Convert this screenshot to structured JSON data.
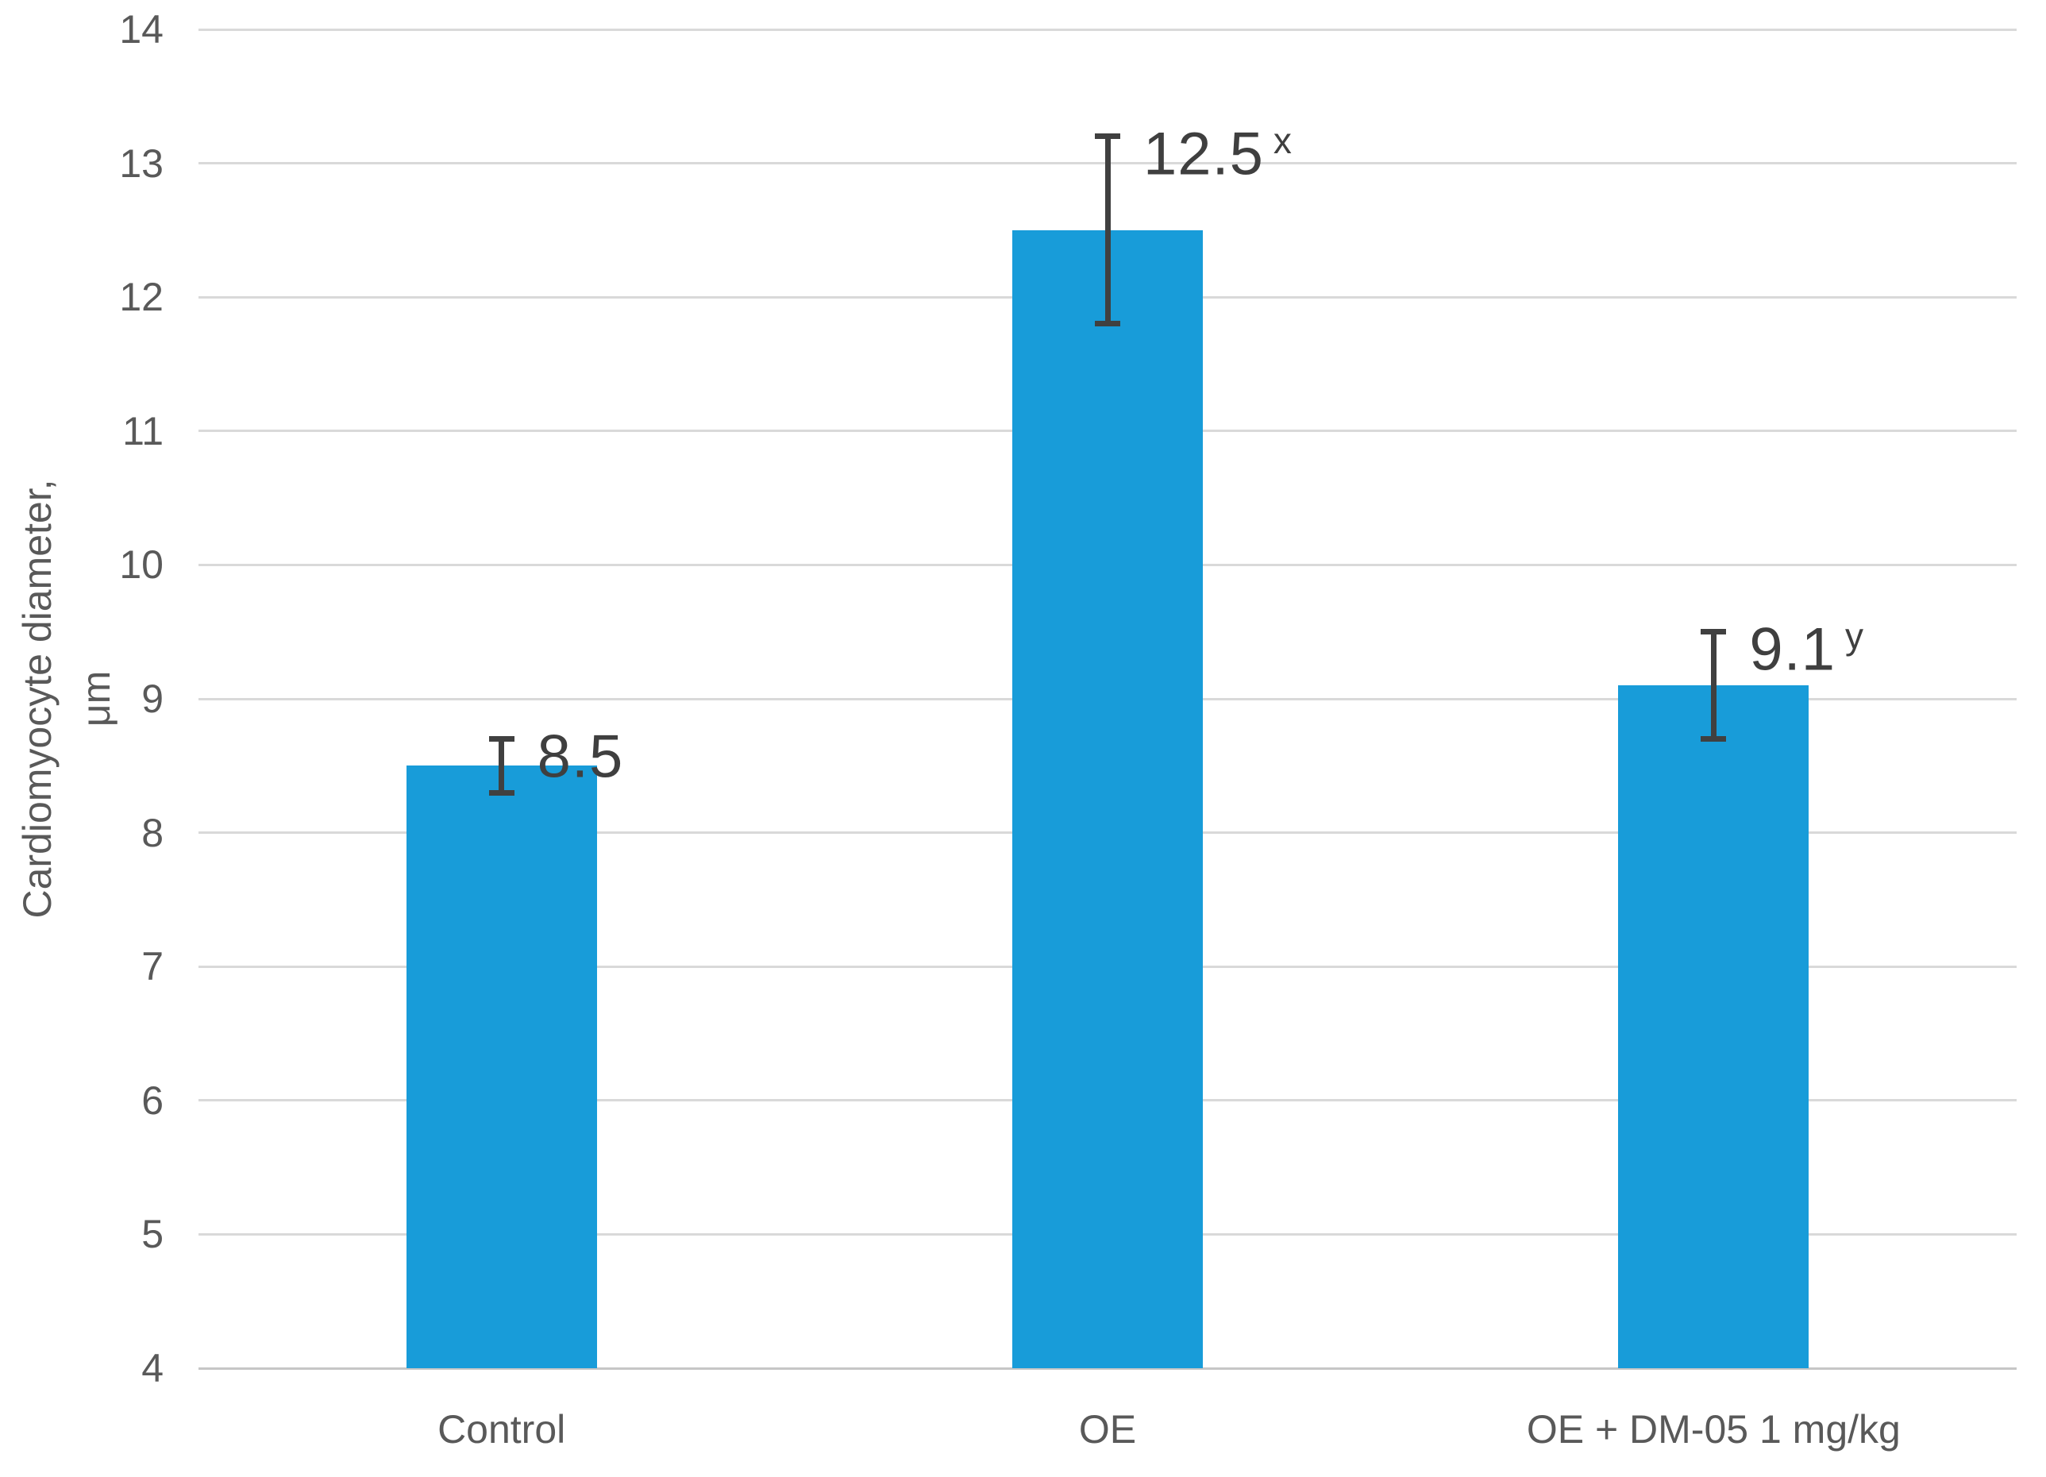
{
  "chart_data": {
    "type": "bar",
    "title": "",
    "categories": [
      "Control",
      "OE",
      "OE + DM-05 1 mg/kg"
    ],
    "values": [
      8.5,
      12.5,
      9.1
    ],
    "data_labels": [
      {
        "text": "8.5",
        "superscript": ""
      },
      {
        "text": "12.5",
        "superscript": "x"
      },
      {
        "text": "9.1",
        "superscript": "y"
      }
    ],
    "error_bars": [
      {
        "low": 8.3,
        "high": 8.7
      },
      {
        "low": 11.8,
        "high": 13.2
      },
      {
        "low": 8.7,
        "high": 9.5
      }
    ],
    "ylabel_lines": [
      "Cardiomyocyte diameter,",
      "μm"
    ],
    "ylabel": "Cardiomyocyte diameter, μm",
    "xlabel": "",
    "ylim": [
      4,
      14
    ],
    "yticks": [
      4,
      5,
      6,
      7,
      8,
      9,
      10,
      11,
      12,
      13,
      14
    ],
    "grid": true,
    "legend_position": "none",
    "colors": {
      "bar": "#189CD9",
      "gridline": "#D9D9D9",
      "axis_line": "#C6C6C6",
      "error_bar": "#404040",
      "tick_label": "#595959",
      "axis_title": "#595959",
      "data_label": "#3F3F3F",
      "background": "#FFFFFF"
    }
  }
}
